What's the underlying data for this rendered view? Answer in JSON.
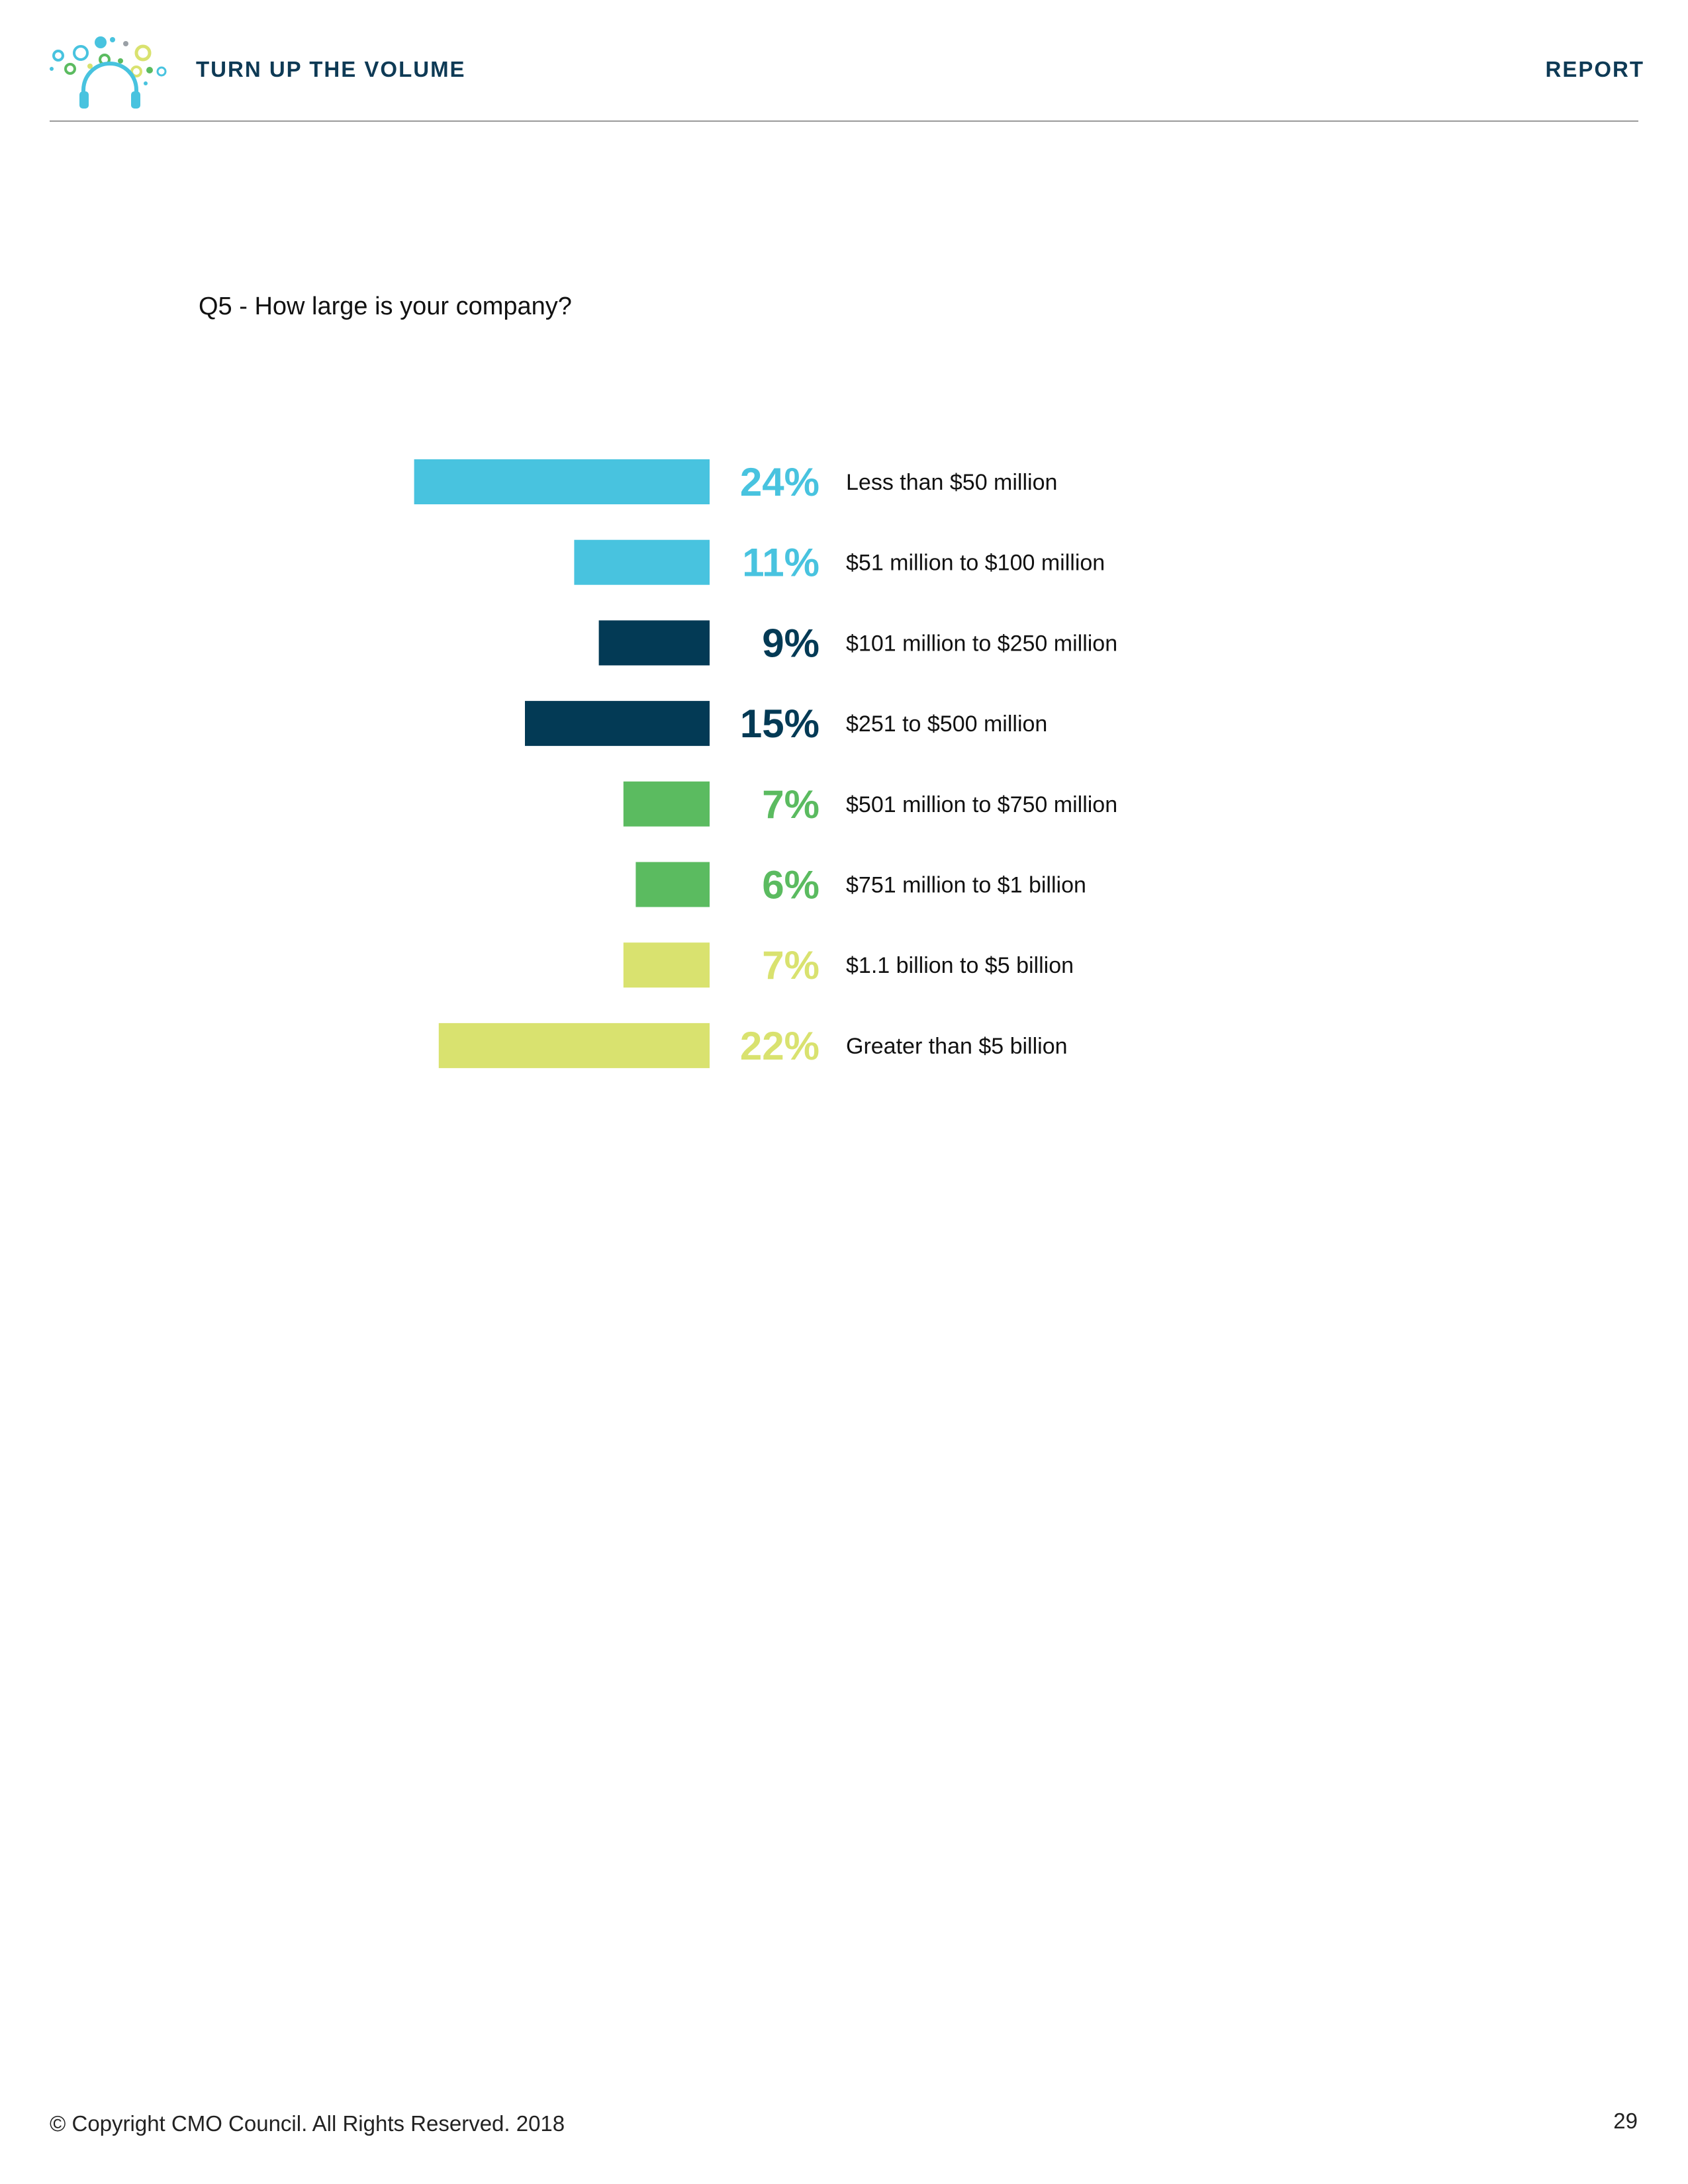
{
  "header": {
    "title": "TURN UP THE VOLUME",
    "section": "REPORT"
  },
  "question": "Q5 - How large is your company?",
  "colors": {
    "light_blue": "#48c3df",
    "navy": "#033a55",
    "green": "#5bbb60",
    "yellow_green": "#d9e26f"
  },
  "chart_data": {
    "type": "bar",
    "orientation": "horizontal",
    "categories": [
      "Less than $50 million",
      "$51 million to $100 million",
      "$101 million to $250 million",
      "$251 to $500 million",
      "$501 million to $750 million",
      "$751 million to $1 billion",
      "$1.1 billion to $5 billion",
      "Greater than $5 billion"
    ],
    "values": [
      24,
      11,
      9,
      15,
      7,
      6,
      7,
      22
    ],
    "value_labels": [
      "24%",
      "11%",
      "9%",
      "15%",
      "7%",
      "6%",
      "7%",
      "22%"
    ],
    "colors": [
      "#48c3df",
      "#48c3df",
      "#033a55",
      "#033a55",
      "#5bbb60",
      "#5bbb60",
      "#d9e26f",
      "#d9e26f"
    ],
    "unit": "%",
    "grid": false,
    "legend": "none"
  },
  "footer": {
    "copyright": "© Copyright CMO Council. All Rights Reserved. 2018",
    "page_number": "29"
  }
}
